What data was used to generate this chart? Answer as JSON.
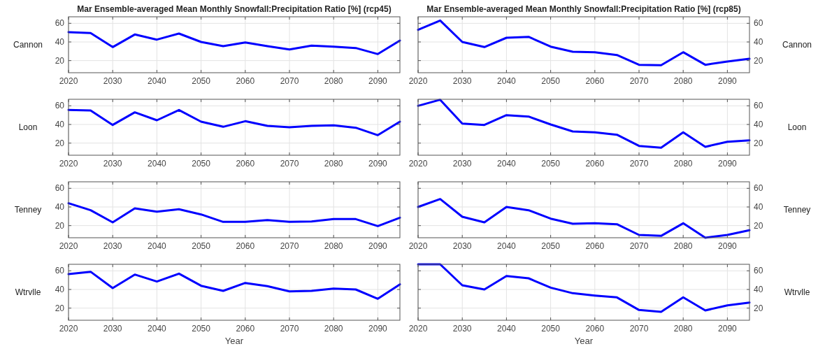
{
  "chart_data": [
    {
      "type": "line",
      "title": "Mar Ensemble-averaged Mean Monthly Snowfall:Precipitation Ratio [%] (rcp45)",
      "ylabel": "Cannon",
      "x": [
        2020,
        2025,
        2030,
        2035,
        2040,
        2045,
        2050,
        2055,
        2060,
        2065,
        2070,
        2075,
        2080,
        2085,
        2090,
        2095
      ],
      "xlim": [
        2020,
        2095
      ],
      "xticks": [
        2020,
        2030,
        2040,
        2050,
        2060,
        2070,
        2080,
        2090
      ],
      "ylim": [
        7,
        67
      ],
      "yticks": [
        20,
        40,
        60
      ],
      "grid": true,
      "series": [
        {
          "color": "#0000ff",
          "values": [
            50.5,
            49.5,
            34.5,
            48,
            42.5,
            49,
            40,
            35.5,
            39.5,
            35.5,
            32,
            36,
            35,
            33.5,
            27,
            41.5
          ]
        }
      ]
    },
    {
      "type": "line",
      "title": "Mar Ensemble-averaged Mean Monthly Snowfall:Precipitation Ratio [%] (rcp85)",
      "y2label": "Cannon",
      "x": [
        2020,
        2025,
        2030,
        2035,
        2040,
        2045,
        2050,
        2055,
        2060,
        2065,
        2070,
        2075,
        2080,
        2085,
        2090,
        2095
      ],
      "xlim": [
        2020,
        2095
      ],
      "xticks": [
        2020,
        2030,
        2040,
        2050,
        2060,
        2070,
        2080,
        2090
      ],
      "y2lim": [
        7,
        67
      ],
      "y2ticks": [
        20,
        40,
        60
      ],
      "grid": true,
      "series": [
        {
          "color": "#0000ff",
          "axis": "y2",
          "values": [
            53,
            63,
            40,
            34.5,
            44.5,
            45.5,
            35,
            29.5,
            29,
            26,
            15.5,
            15,
            29,
            15.5,
            19,
            22
          ]
        }
      ]
    },
    {
      "type": "line",
      "ylabel": "Loon",
      "x": [
        2020,
        2025,
        2030,
        2035,
        2040,
        2045,
        2050,
        2055,
        2060,
        2065,
        2070,
        2075,
        2080,
        2085,
        2090,
        2095
      ],
      "xlim": [
        2020,
        2095
      ],
      "xticks": [
        2020,
        2030,
        2040,
        2050,
        2060,
        2070,
        2080,
        2090
      ],
      "ylim": [
        7,
        67
      ],
      "yticks": [
        20,
        40,
        60
      ],
      "grid": true,
      "series": [
        {
          "color": "#0000ff",
          "values": [
            55.5,
            55,
            39.5,
            53,
            44.5,
            55.5,
            43,
            37.5,
            43.5,
            38.5,
            37,
            38.5,
            39,
            36.5,
            28.5,
            43
          ]
        }
      ]
    },
    {
      "type": "line",
      "y2label": "Loon",
      "x": [
        2020,
        2025,
        2030,
        2035,
        2040,
        2045,
        2050,
        2055,
        2060,
        2065,
        2070,
        2075,
        2080,
        2085,
        2090,
        2095
      ],
      "xlim": [
        2020,
        2095
      ],
      "xticks": [
        2020,
        2030,
        2040,
        2050,
        2060,
        2070,
        2080,
        2090
      ],
      "y2lim": [
        7,
        67
      ],
      "y2ticks": [
        20,
        40,
        60
      ],
      "grid": true,
      "series": [
        {
          "color": "#0000ff",
          "axis": "y2",
          "values": [
            60,
            66.5,
            41,
            39.5,
            50,
            48.5,
            40,
            32.5,
            31.5,
            29,
            17,
            15,
            31.5,
            16,
            21.5,
            23
          ]
        }
      ]
    },
    {
      "type": "line",
      "ylabel": "Tenney",
      "x": [
        2020,
        2025,
        2030,
        2035,
        2040,
        2045,
        2050,
        2055,
        2060,
        2065,
        2070,
        2075,
        2080,
        2085,
        2090,
        2095
      ],
      "xlim": [
        2020,
        2095
      ],
      "xticks": [
        2020,
        2030,
        2040,
        2050,
        2060,
        2070,
        2080,
        2090
      ],
      "ylim": [
        7,
        67
      ],
      "yticks": [
        20,
        40,
        60
      ],
      "grid": true,
      "series": [
        {
          "color": "#0000ff",
          "values": [
            44,
            36.5,
            23.5,
            38.5,
            35,
            37.5,
            32,
            24,
            24,
            26,
            24,
            24.5,
            27,
            27,
            19.5,
            28.5
          ]
        }
      ]
    },
    {
      "type": "line",
      "y2label": "Tenney",
      "x": [
        2020,
        2025,
        2030,
        2035,
        2040,
        2045,
        2050,
        2055,
        2060,
        2065,
        2070,
        2075,
        2080,
        2085,
        2090,
        2095
      ],
      "xlim": [
        2020,
        2095
      ],
      "xticks": [
        2020,
        2030,
        2040,
        2050,
        2060,
        2070,
        2080,
        2090
      ],
      "y2lim": [
        7,
        67
      ],
      "y2ticks": [
        20,
        40,
        60
      ],
      "grid": true,
      "series": [
        {
          "color": "#0000ff",
          "axis": "y2",
          "values": [
            40,
            48.5,
            29.5,
            23.5,
            40,
            36.5,
            27.5,
            22,
            22.5,
            21.5,
            10,
            9,
            22.5,
            7,
            10,
            15
          ]
        }
      ]
    },
    {
      "type": "line",
      "ylabel": "Wtrvlle",
      "xlabel": "Year",
      "x": [
        2020,
        2025,
        2030,
        2035,
        2040,
        2045,
        2050,
        2055,
        2060,
        2065,
        2070,
        2075,
        2080,
        2085,
        2090,
        2095
      ],
      "xlim": [
        2020,
        2095
      ],
      "xticks": [
        2020,
        2030,
        2040,
        2050,
        2060,
        2070,
        2080,
        2090
      ],
      "ylim": [
        7,
        67
      ],
      "yticks": [
        20,
        40,
        60
      ],
      "grid": true,
      "series": [
        {
          "color": "#0000ff",
          "values": [
            56.5,
            59,
            41.5,
            56,
            48.5,
            57,
            44,
            38.5,
            47,
            43.5,
            38,
            38.5,
            41,
            40,
            30,
            45.5
          ]
        }
      ]
    },
    {
      "type": "line",
      "y2label": "Wtrvlle",
      "xlabel": "Year",
      "x": [
        2020,
        2025,
        2030,
        2035,
        2040,
        2045,
        2050,
        2055,
        2060,
        2065,
        2070,
        2075,
        2080,
        2085,
        2090,
        2095
      ],
      "xlim": [
        2020,
        2095
      ],
      "xticks": [
        2020,
        2030,
        2040,
        2050,
        2060,
        2070,
        2080,
        2090
      ],
      "y2lim": [
        7,
        67
      ],
      "y2ticks": [
        20,
        40,
        60
      ],
      "grid": true,
      "series": [
        {
          "color": "#0000ff",
          "axis": "y2",
          "values": [
            67,
            67,
            44.5,
            40,
            54.5,
            52,
            42,
            36,
            33.5,
            31.5,
            18,
            16,
            31.5,
            17.5,
            23,
            26
          ]
        }
      ]
    }
  ]
}
